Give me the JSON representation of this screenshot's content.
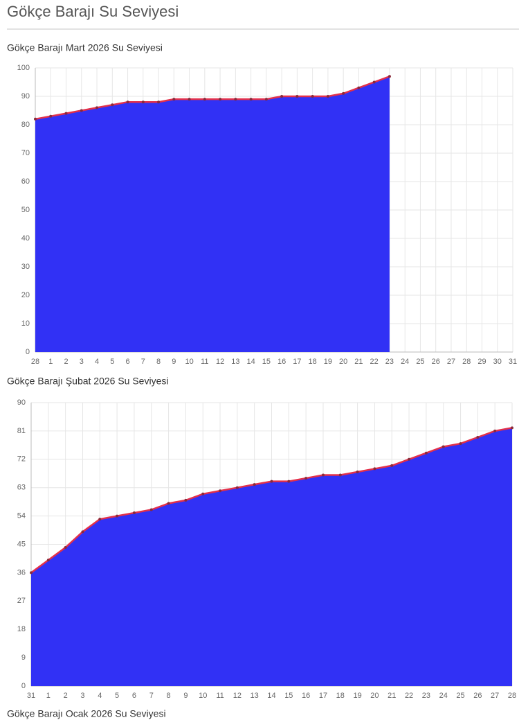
{
  "page_title": "Gökçe Barajı Su Seviyesi",
  "chart_data": [
    {
      "type": "line",
      "title": "Gökçe Barajı Mart 2026 Su Seviyesi",
      "categories": [
        "28",
        "1",
        "2",
        "3",
        "4",
        "5",
        "6",
        "7",
        "8",
        "9",
        "10",
        "11",
        "12",
        "13",
        "14",
        "15",
        "16",
        "17",
        "18",
        "19",
        "20",
        "21",
        "22",
        "23",
        "24",
        "25",
        "26",
        "27",
        "28",
        "29",
        "30",
        "31"
      ],
      "values": [
        82,
        83,
        84,
        85,
        86,
        87,
        88,
        88,
        88,
        89,
        89,
        89,
        89,
        89,
        89,
        89,
        90,
        90,
        90,
        90,
        91,
        93,
        95,
        97,
        null,
        null,
        null,
        null,
        null,
        null,
        null,
        null
      ],
      "ylim": [
        0,
        100
      ],
      "yticks": [
        0,
        10,
        20,
        30,
        40,
        50,
        60,
        70,
        80,
        90,
        100
      ],
      "grid": true,
      "fill": true,
      "area_color": "#3131f5",
      "line_color": "#e3304a",
      "marker_color": "#8a2a3a"
    },
    {
      "type": "line",
      "title": "Gökçe Barajı Şubat 2026 Su Seviyesi",
      "categories": [
        "31",
        "1",
        "2",
        "3",
        "4",
        "5",
        "6",
        "7",
        "8",
        "9",
        "10",
        "11",
        "12",
        "13",
        "14",
        "15",
        "16",
        "17",
        "18",
        "19",
        "20",
        "21",
        "22",
        "23",
        "24",
        "25",
        "26",
        "27",
        "28"
      ],
      "values": [
        36,
        40,
        44,
        49,
        53,
        54,
        55,
        56,
        58,
        59,
        61,
        62,
        63,
        64,
        65,
        65,
        66,
        67,
        67,
        68,
        69,
        70,
        72,
        74,
        76,
        77,
        79,
        81,
        82
      ],
      "ylim": [
        0,
        90
      ],
      "yticks": [
        0,
        9,
        18,
        27,
        36,
        45,
        54,
        63,
        72,
        81,
        90
      ],
      "grid": true,
      "fill": true,
      "area_color": "#3131f5",
      "line_color": "#e3304a",
      "marker_color": "#8a2a3a"
    }
  ],
  "next_heading": "Gökçe Barajı Ocak 2026 Su Seviyesi"
}
